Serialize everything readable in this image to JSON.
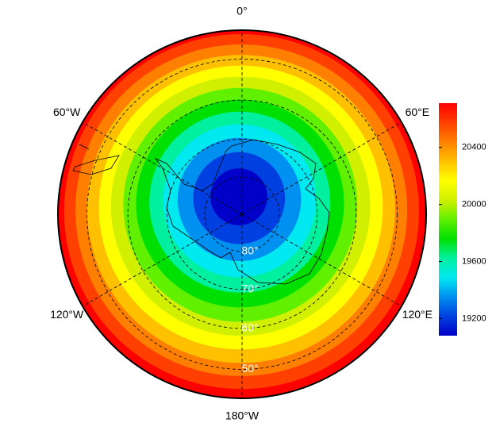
{
  "map": {
    "lon_lines": [
      {
        "value": 0,
        "label": "0°"
      },
      {
        "value": 60,
        "label": "60°E"
      },
      {
        "value": 120,
        "label": "120°E"
      },
      {
        "value": 180,
        "label": "180°W"
      },
      {
        "value": -120,
        "label": "120°W"
      },
      {
        "value": -60,
        "label": "60°W"
      }
    ],
    "lat_circles": [
      {
        "value": -80,
        "label": "80°"
      },
      {
        "value": -70,
        "label": "70°"
      },
      {
        "value": -60,
        "label": "60°"
      },
      {
        "value": -50,
        "label": "50°"
      }
    ],
    "colorbar": {
      "lim": [
        19080,
        20710
      ],
      "ticks": [
        19200,
        19600,
        20000,
        20400
      ],
      "colors": [
        "#0000c8",
        "#0040e0",
        "#0090f0",
        "#00e8f0",
        "#00f0a0",
        "#00e000",
        "#60f000",
        "#d0f000",
        "#ffff00",
        "#ffc000",
        "#ff8000",
        "#ff4000",
        "#ff0000"
      ]
    }
  }
}
